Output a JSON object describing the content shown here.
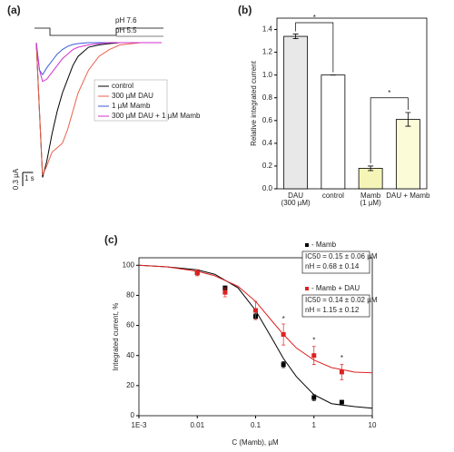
{
  "chart_data": [
    {
      "type": "line",
      "panel": "(a)",
      "pH_labels": [
        "pH 7.6",
        "pH 5.5"
      ],
      "x": [
        0,
        0.3,
        0.6,
        1,
        1.5,
        2,
        2.5,
        3,
        3.5,
        4,
        5,
        6,
        7,
        8,
        10,
        12
      ],
      "xlim": [
        0,
        12
      ],
      "ylim": [
        -3,
        0.2
      ],
      "x_scalebar": {
        "value": 1,
        "label": "1 s"
      },
      "y_scalebar": {
        "value": 0.3,
        "label": "0.3 µA"
      },
      "series": [
        {
          "name": "control",
          "color": "#000000",
          "values": [
            0,
            -1.5,
            -2.95,
            -2.6,
            -2.0,
            -1.5,
            -1.1,
            -0.8,
            -0.5,
            -0.3,
            -0.1,
            -0.05,
            -0.02,
            0,
            0,
            0
          ]
        },
        {
          "name": "300 µM DAU",
          "color": "#e8604c",
          "values": [
            0,
            -1.5,
            -2.9,
            -2.7,
            -2.4,
            -2.3,
            -2.2,
            -1.9,
            -1.5,
            -1.1,
            -0.6,
            -0.3,
            -0.15,
            -0.05,
            0,
            0
          ]
        },
        {
          "name": "1 µM Mamb",
          "color": "#3a5bd9",
          "values": [
            0,
            -0.6,
            -0.7,
            -0.55,
            -0.4,
            -0.25,
            -0.15,
            -0.08,
            -0.04,
            -0.02,
            0,
            0,
            0,
            0,
            0,
            0
          ]
        },
        {
          "name": "300 µM DAU + 1 µM Mamb",
          "color": "#d030d0",
          "values": [
            0,
            -0.6,
            -0.85,
            -0.8,
            -0.65,
            -0.5,
            -0.35,
            -0.25,
            -0.15,
            -0.1,
            -0.05,
            -0.02,
            0,
            0,
            0,
            0
          ]
        }
      ]
    },
    {
      "type": "bar",
      "panel": "(b)",
      "ylabel": "Relative integrated current",
      "categories": [
        [
          "DAU",
          "(300 µM)"
        ],
        [
          "control"
        ],
        [
          "Mamb",
          "(1 µM)"
        ],
        [
          "DAU + Mamb"
        ]
      ],
      "values": [
        1.34,
        1.0,
        0.18,
        0.61
      ],
      "errors": [
        0.02,
        0,
        0.02,
        0.06
      ],
      "colors": [
        "#e8e8e8",
        "#ffffff",
        "#f5f5b8",
        "#fbfbd8"
      ],
      "ylim": [
        0,
        1.5
      ],
      "yticks": [
        {
          "value": 0,
          "label": "0.0"
        },
        0.2,
        0.4,
        0.6,
        0.8,
        {
          "value": 1,
          "label": "1.0"
        },
        1.2,
        1.4
      ],
      "annotations": [
        {
          "text": "*",
          "between": [
            0,
            1
          ],
          "y": 1.46
        },
        {
          "text": "*",
          "between": [
            2,
            3
          ],
          "y": 0.8
        }
      ]
    },
    {
      "type": "scatter",
      "panel": "(c)",
      "xlabel": "C (Mamb), µM",
      "ylabel": "Integrated current, %",
      "xscale": "log",
      "xlim": [
        0.001,
        10
      ],
      "xticks": [
        {
          "value": 0.001,
          "label": "1E-3"
        },
        0.01,
        0.1,
        1,
        10
      ],
      "ylim": [
        0,
        105
      ],
      "yticks": [
        0,
        20,
        40,
        60,
        80,
        100
      ],
      "x": [
        0.01,
        0.03,
        0.1,
        0.3,
        1,
        3
      ],
      "fit_x": [
        0.001,
        0.003,
        0.01,
        0.02,
        0.05,
        0.1,
        0.2,
        0.3,
        0.5,
        1,
        2,
        5,
        10
      ],
      "series": [
        {
          "name": "- Mamb",
          "color": "#000000",
          "values": [
            95,
            85,
            66,
            34,
            12,
            9
          ],
          "errors": [
            1,
            1,
            2,
            2,
            2,
            1
          ],
          "fit": [
            100,
            99,
            97,
            94,
            85,
            70,
            50,
            38,
            26,
            14,
            8,
            6,
            5
          ],
          "notes": [
            "IC50 = 0.15 ± 0.06 µM",
            "nH = 0.68 ± 0.14"
          ]
        },
        {
          "name": "- Mamb + DAU",
          "color": "#e02020",
          "values": [
            95,
            82,
            70,
            54,
            40,
            29
          ],
          "errors": [
            2,
            3,
            6,
            7,
            6,
            5
          ],
          "fit": [
            100,
            99,
            96,
            93,
            86,
            76,
            62,
            54,
            45,
            37,
            32,
            29,
            28.5
          ],
          "notes": [
            "IC50 = 0.14 ± 0.02 µM",
            "nH = 1.15 ± 0.12"
          ]
        }
      ],
      "annotations": [
        {
          "text": "*",
          "x": 0.3,
          "y": 64
        },
        {
          "text": "*",
          "x": 1,
          "y": 50
        },
        {
          "text": "*",
          "x": 3,
          "y": 38
        }
      ]
    }
  ]
}
